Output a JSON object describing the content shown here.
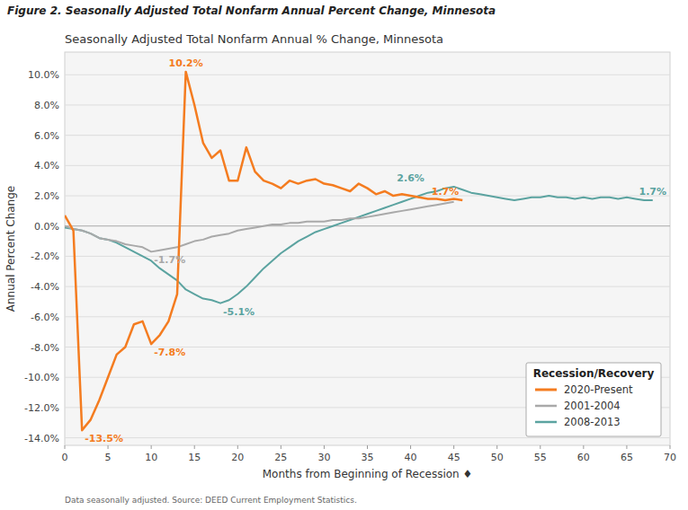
{
  "chart_data": {
    "type": "line",
    "figure_title": "Figure 2. Seasonally Adjusted Total Nonfarm Annual Percent Change, Minnesota",
    "title": "Seasonally Adjusted Total Nonfarm Annual % Change, Minnesota",
    "x_label": "Months from Beginning of Recession ♦",
    "y_label": "Annual Percent Change",
    "footnote": "Data seasonally adjusted. Source: DEED Current Employment Statistics.",
    "xlim": [
      0,
      70
    ],
    "ylim": [
      -14.5,
      11.5
    ],
    "xticks": [
      0,
      5,
      10,
      15,
      20,
      25,
      30,
      35,
      40,
      45,
      50,
      55,
      60,
      65,
      70
    ],
    "yticks": [
      {
        "value": -14.0,
        "label": "-14.0%"
      },
      {
        "value": -12.0,
        "label": "-12.0%"
      },
      {
        "value": -10.0,
        "label": "-10.0%"
      },
      {
        "value": -8.0,
        "label": "-8.0%"
      },
      {
        "value": -6.0,
        "label": "-6.0%"
      },
      {
        "value": -4.0,
        "label": "-4.0%"
      },
      {
        "value": -2.0,
        "label": "-2.0%"
      },
      {
        "value": 0.0,
        "label": "0.0%"
      },
      {
        "value": 2.0,
        "label": "2.0%"
      },
      {
        "value": 4.0,
        "label": "4.0%"
      },
      {
        "value": 6.0,
        "label": "6.0%"
      },
      {
        "value": 8.0,
        "label": "8.0%"
      },
      {
        "value": 10.0,
        "label": "10.0%"
      }
    ],
    "grid": true,
    "legend": "lower right",
    "legend_title": "Recession/Recovery",
    "series": [
      {
        "name": "2020-Present",
        "color": "#f47c20",
        "x": [
          0,
          1,
          2,
          3,
          4,
          5,
          6,
          7,
          8,
          9,
          10,
          11,
          12,
          13,
          14,
          15,
          16,
          17,
          18,
          19,
          20,
          21,
          22,
          23,
          24,
          25,
          26,
          27,
          28,
          29,
          30,
          31,
          32,
          33,
          34,
          35,
          36,
          37,
          38,
          39,
          40,
          41,
          42,
          43,
          44,
          45,
          46
        ],
        "values": [
          0.7,
          -0.3,
          -13.5,
          -12.8,
          -11.5,
          -10.0,
          -8.5,
          -8.0,
          -6.5,
          -6.3,
          -7.8,
          -7.2,
          -6.3,
          -4.5,
          10.2,
          8.0,
          5.5,
          4.5,
          5.0,
          3.0,
          3.0,
          5.2,
          3.6,
          3.0,
          2.8,
          2.5,
          3.0,
          2.8,
          3.0,
          3.1,
          2.8,
          2.7,
          2.5,
          2.3,
          2.8,
          2.5,
          2.1,
          2.3,
          2.0,
          2.1,
          2.0,
          1.9,
          1.8,
          1.8,
          1.7,
          1.8,
          1.7
        ]
      },
      {
        "name": "2001-2004",
        "color": "#a9a9a9",
        "x": [
          0,
          1,
          2,
          3,
          4,
          5,
          6,
          7,
          8,
          9,
          10,
          11,
          12,
          13,
          14,
          15,
          16,
          17,
          18,
          19,
          20,
          21,
          22,
          23,
          24,
          25,
          26,
          27,
          28,
          29,
          30,
          31,
          32,
          33,
          34,
          35,
          36,
          37,
          38,
          39,
          40,
          41,
          42,
          43,
          44,
          45
        ],
        "values": [
          0.0,
          -0.2,
          -0.3,
          -0.5,
          -0.8,
          -0.9,
          -1.0,
          -1.2,
          -1.3,
          -1.4,
          -1.7,
          -1.6,
          -1.5,
          -1.4,
          -1.2,
          -1.0,
          -0.9,
          -0.7,
          -0.6,
          -0.5,
          -0.3,
          -0.2,
          -0.1,
          0.0,
          0.1,
          0.1,
          0.2,
          0.2,
          0.3,
          0.3,
          0.3,
          0.4,
          0.4,
          0.5,
          0.5,
          0.6,
          0.7,
          0.8,
          0.9,
          1.0,
          1.1,
          1.2,
          1.3,
          1.4,
          1.5,
          1.6
        ]
      },
      {
        "name": "2008-2013",
        "color": "#5ba3a0",
        "x": [
          0,
          1,
          2,
          3,
          4,
          5,
          6,
          7,
          8,
          9,
          10,
          11,
          12,
          13,
          14,
          15,
          16,
          17,
          18,
          19,
          20,
          21,
          22,
          23,
          24,
          25,
          26,
          27,
          28,
          29,
          30,
          31,
          32,
          33,
          34,
          35,
          36,
          37,
          38,
          39,
          40,
          41,
          42,
          43,
          44,
          45,
          46,
          47,
          48,
          49,
          50,
          51,
          52,
          53,
          54,
          55,
          56,
          57,
          58,
          59,
          60,
          61,
          62,
          63,
          64,
          65,
          66,
          67,
          68
        ],
        "values": [
          -0.1,
          -0.2,
          -0.3,
          -0.5,
          -0.8,
          -0.9,
          -1.1,
          -1.4,
          -1.7,
          -2.0,
          -2.3,
          -2.8,
          -3.2,
          -3.6,
          -4.2,
          -4.5,
          -4.8,
          -4.9,
          -5.1,
          -4.9,
          -4.5,
          -4.0,
          -3.4,
          -2.8,
          -2.3,
          -1.8,
          -1.4,
          -1.0,
          -0.7,
          -0.4,
          -0.2,
          0.0,
          0.2,
          0.4,
          0.6,
          0.8,
          1.0,
          1.2,
          1.4,
          1.6,
          1.8,
          2.0,
          2.2,
          2.3,
          2.5,
          2.6,
          2.4,
          2.2,
          2.1,
          2.0,
          1.9,
          1.8,
          1.7,
          1.8,
          1.9,
          1.9,
          2.0,
          1.9,
          1.9,
          1.8,
          1.9,
          1.8,
          1.9,
          1.9,
          1.8,
          1.9,
          1.8,
          1.7,
          1.7
        ]
      }
    ],
    "annotations": [
      {
        "text": "-13.5%",
        "x": 2,
        "y": -13.5,
        "color": "#f47c20"
      },
      {
        "text": "-7.8%",
        "x": 10,
        "y": -7.8,
        "color": "#f47c20"
      },
      {
        "text": "10.2%",
        "x": 14,
        "y": 10.2,
        "color": "#f47c20"
      },
      {
        "text": "-1.7%",
        "x": 10,
        "y": -1.7,
        "color": "#a9a9a9"
      },
      {
        "text": "-5.1%",
        "x": 18,
        "y": -5.1,
        "color": "#5ba3a0"
      },
      {
        "text": "2.6%",
        "x": 40,
        "y": 2.6,
        "color": "#5ba3a0"
      },
      {
        "text": "1.7%",
        "x": 44,
        "y": 1.7,
        "color": "#f47c20"
      },
      {
        "text": "1.7%",
        "x": 68,
        "y": 1.7,
        "color": "#5ba3a0"
      }
    ]
  }
}
